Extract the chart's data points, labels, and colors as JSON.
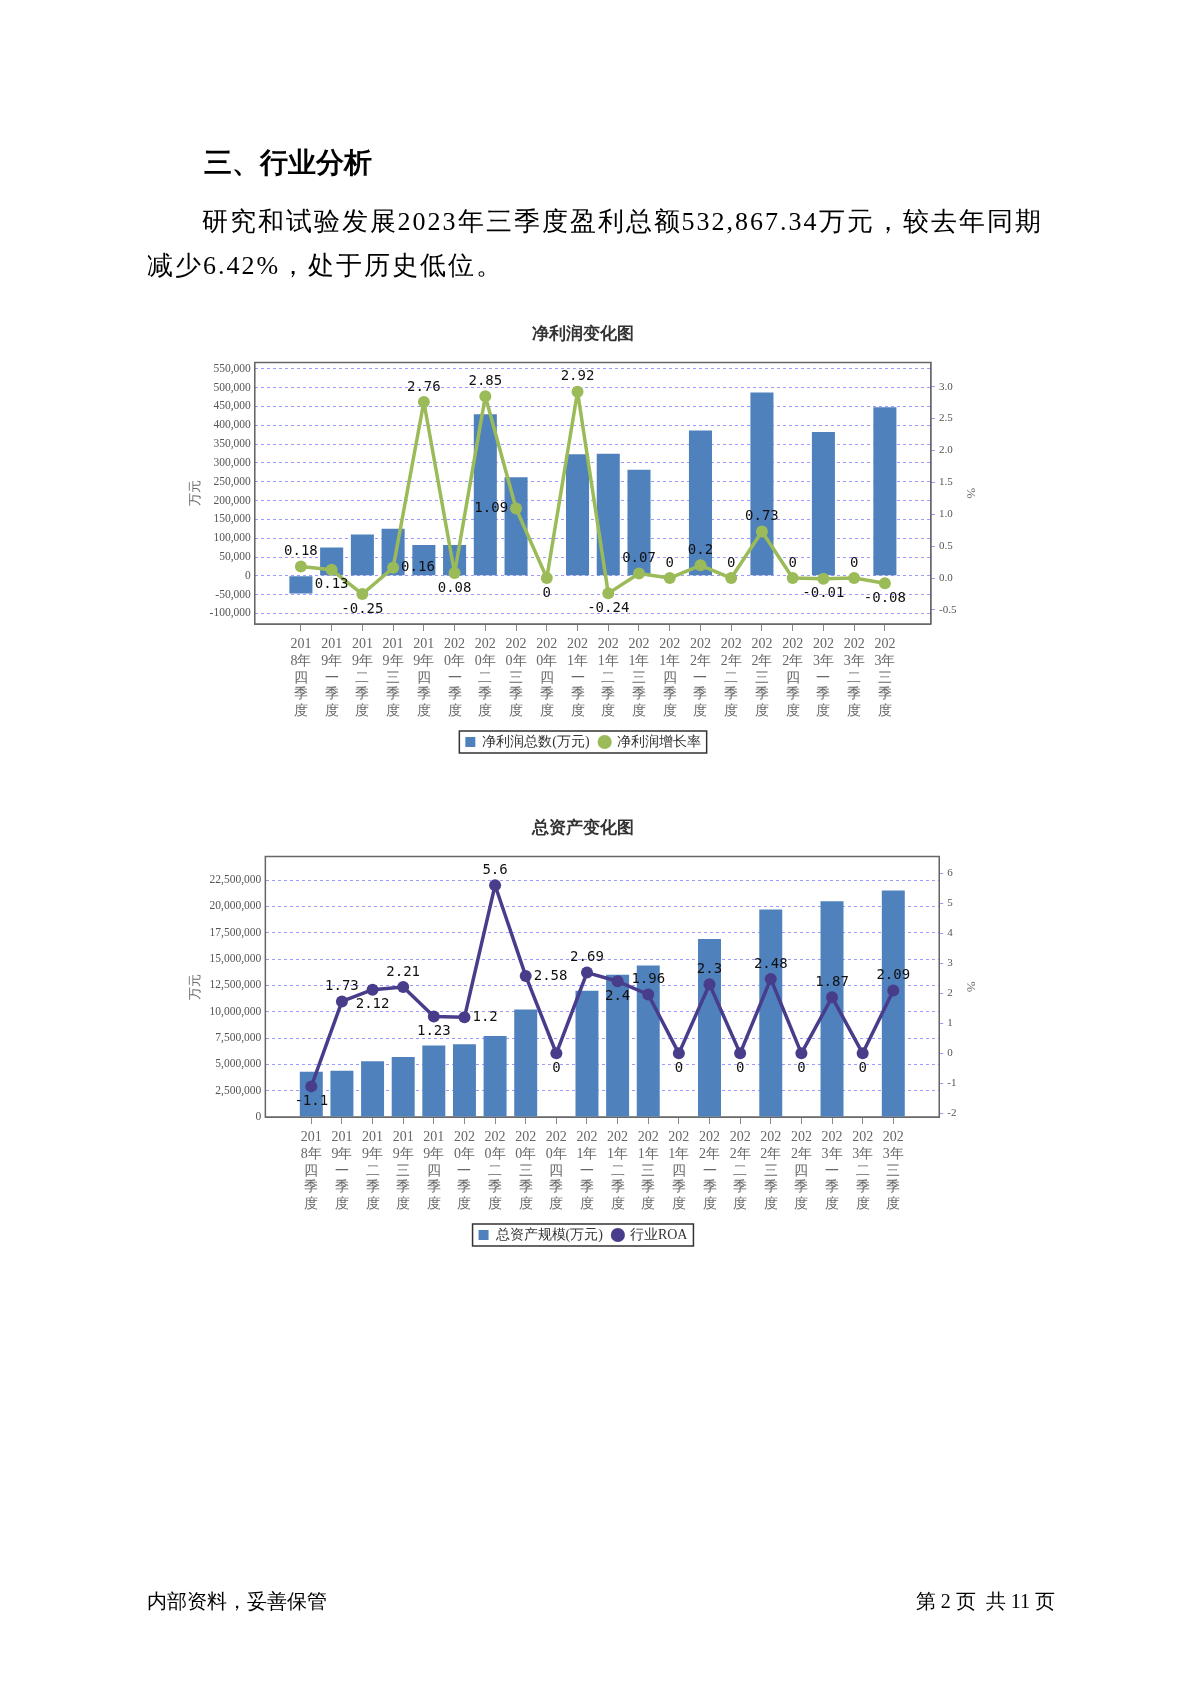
{
  "chart_data": [
    {
      "type": "bar",
      "title": "净利润变化图",
      "annotations": [
        "三、行业分析",
        "研究和试验发展2023年三季度盈利总额532,867.34万元，较去年同期减少6.42%，处于历史低位。"
      ],
      "ylabel": "万元",
      "y2label": "%",
      "categories": [
        "2018年四季度",
        "2019年一季度",
        "2019年二季度",
        "2019年三季度",
        "2019年四季度",
        "2020年一季度",
        "2020年二季度",
        "2020年三季度",
        "2020年四季度",
        "2021年一季度",
        "2021年二季度",
        "2021年三季度",
        "2021年四季度",
        "2022年一季度",
        "2022年二季度",
        "2022年三季度",
        "2022年四季度",
        "2023年一季度",
        "2023年二季度",
        "2023年三季度"
      ],
      "series": [
        {
          "name": "净利润总数(万元)",
          "color": "#4f81bd",
          "values": [
            -47000,
            75000,
            110000,
            125000,
            82000,
            82000,
            429000,
            262000,
            null,
            323000,
            324000,
            282000,
            null,
            386000,
            null,
            487000,
            null,
            382000,
            null,
            448000
          ]
        },
        {
          "name": "净利润增长率",
          "type": "line",
          "axis": "y2",
          "color": "#9bbb59",
          "values": [
            0.18,
            0.13,
            -0.25,
            0.16,
            2.76,
            0.08,
            2.85,
            1.09,
            0,
            2.92,
            -0.24,
            0.07,
            0,
            0.2,
            0,
            0.73,
            0,
            -0.01,
            0,
            -0.08
          ],
          "value_labels": [
            "0.18",
            "0.13",
            "-0.25",
            "0.16",
            "2.76",
            "0.08",
            "2.85",
            "1.09",
            "0",
            "2.92",
            "-0.24",
            "0.07",
            "0",
            "0.2",
            "0",
            "0.73",
            "0",
            "-0.01",
            "0",
            "-0.08"
          ]
        }
      ],
      "ylim": [
        -128000,
        567000
      ],
      "yticks": [
        {
          "value": -100000,
          "label": "-100,000"
        },
        {
          "value": -50000,
          "label": "-50,000"
        },
        0,
        {
          "value": 50000,
          "label": "50,000"
        },
        {
          "value": 100000,
          "label": "100,000"
        },
        {
          "value": 150000,
          "label": "150,000"
        },
        {
          "value": 200000,
          "label": "200,000"
        },
        {
          "value": 250000,
          "label": "250,000"
        },
        {
          "value": 300000,
          "label": "300,000"
        },
        {
          "value": 350000,
          "label": "350,000"
        },
        {
          "value": 400000,
          "label": "400,000"
        },
        {
          "value": 450000,
          "label": "450,000"
        },
        {
          "value": 500000,
          "label": "500,000"
        },
        {
          "value": 550000,
          "label": "550,000"
        }
      ],
      "y2lim": [
        -0.72,
        3.38
      ],
      "y2ticks": [
        -0.5,
        {
          "value": 0,
          "label": "0.0"
        },
        0.5,
        {
          "value": 1,
          "label": "1.0"
        },
        1.5,
        {
          "value": 2,
          "label": "2.0"
        },
        2.5,
        {
          "value": 3,
          "label": "3.0"
        }
      ],
      "grid": "y",
      "legend": "bottom",
      "marker": "circle"
    },
    {
      "type": "bar",
      "title": "总资产变化图",
      "annotations": [
        "内部资料，妥善保管",
        "第 2 页  共 11 页"
      ],
      "ylabel": "万元",
      "y2label": "%",
      "categories": [
        "2018年四季度",
        "2019年一季度",
        "2019年二季度",
        "2019年三季度",
        "2019年四季度",
        "2020年一季度",
        "2020年二季度",
        "2020年三季度",
        "2020年四季度",
        "2021年一季度",
        "2021年二季度",
        "2021年三季度",
        "2021年四季度",
        "2022年一季度",
        "2022年二季度",
        "2022年三季度",
        "2022年四季度",
        "2023年一季度",
        "2023年二季度",
        "2023年三季度"
      ],
      "series": [
        {
          "name": "总资产规模(万元)",
          "color": "#4f81bd",
          "values": [
            4300000,
            4400000,
            5300000,
            5700000,
            6800000,
            6900000,
            7700000,
            10200000,
            null,
            12000000,
            13500000,
            14400000,
            null,
            16900000,
            null,
            19700000,
            null,
            20500000,
            null,
            21500000
          ]
        },
        {
          "name": "行业ROA",
          "type": "line",
          "axis": "y2",
          "color": "#483d8b",
          "values": [
            -1.1,
            1.73,
            2.12,
            2.21,
            1.23,
            1.2,
            5.6,
            2.58,
            0,
            2.69,
            2.4,
            1.96,
            0,
            2.3,
            0,
            2.48,
            0,
            1.87,
            0,
            2.09
          ],
          "value_labels": [
            "-1.1",
            "1.73",
            "2.12",
            "2.21",
            "1.23",
            "1.2",
            "5.6",
            "2.58",
            "0",
            "2.69",
            "2.4",
            "1.96",
            "0",
            "2.3",
            "0",
            "2.48",
            "0",
            "1.87",
            "0",
            "2.09"
          ]
        }
      ],
      "ylim": [
        0,
        24750000
      ],
      "yticks": [
        0,
        {
          "value": 2500000,
          "label": "2,500,000"
        },
        {
          "value": 5000000,
          "label": "5,000,000"
        },
        {
          "value": 7500000,
          "label": "7,500,000"
        },
        {
          "value": 10000000,
          "label": "10,000,000"
        },
        {
          "value": 12500000,
          "label": "12,500,000"
        },
        {
          "value": 15000000,
          "label": "15,000,000"
        },
        {
          "value": 17500000,
          "label": "17,500,000"
        },
        {
          "value": 20000000,
          "label": "20,000,000"
        },
        {
          "value": 22500000,
          "label": "22,500,000"
        }
      ],
      "y2lim": [
        -2.12,
        6.56
      ],
      "y2ticks": [
        -2,
        -1,
        0,
        1,
        2,
        3,
        4,
        5,
        6
      ],
      "grid": "y",
      "legend": "bottom",
      "marker": "circle"
    }
  ]
}
